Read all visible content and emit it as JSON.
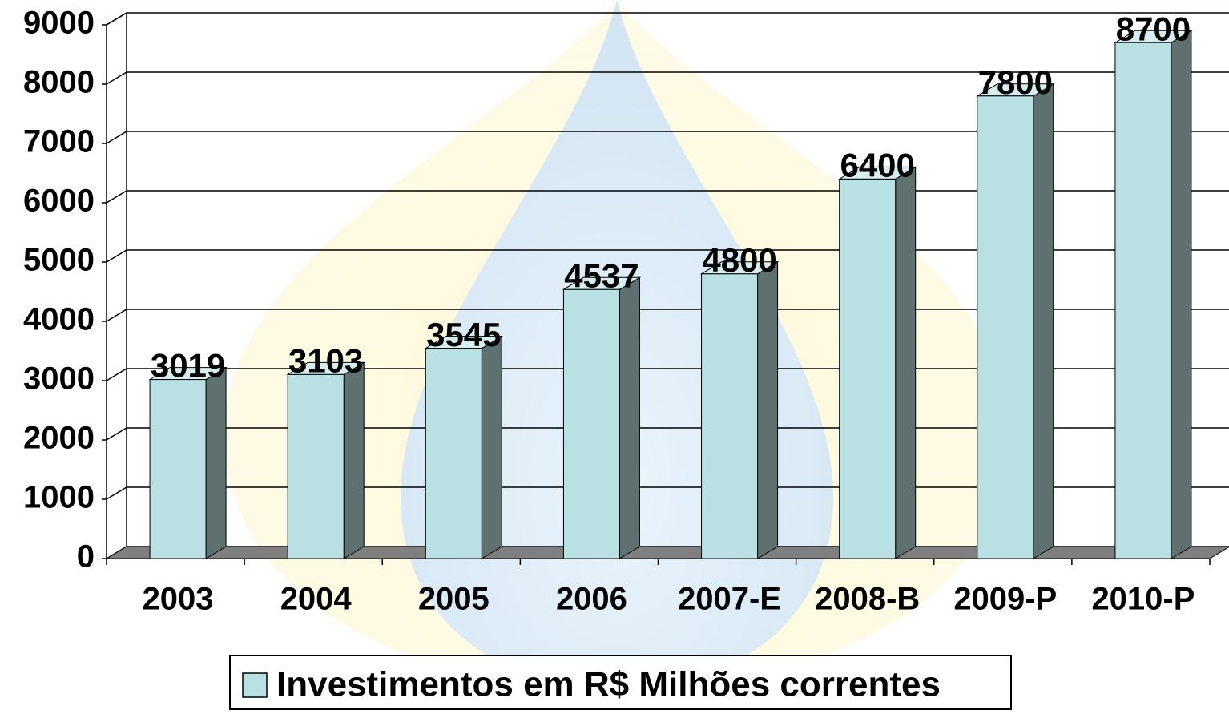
{
  "chart_data": {
    "type": "bar3d",
    "categories": [
      "2003",
      "2004",
      "2005",
      "2006",
      "2007-E",
      "2008-B",
      "2009-P",
      "2010-P"
    ],
    "series": [
      {
        "name": "Investimentos em R$ Milhões correntes",
        "color": "#b9e0e3",
        "values": [
          3019,
          3103,
          3545,
          4537,
          4800,
          6400,
          7800,
          8700
        ]
      }
    ],
    "ylim": [
      0,
      9000
    ],
    "yticks": [
      0,
      1000,
      2000,
      3000,
      4000,
      5000,
      6000,
      7000,
      8000,
      9000
    ],
    "grid": true,
    "legend": "bottom"
  }
}
